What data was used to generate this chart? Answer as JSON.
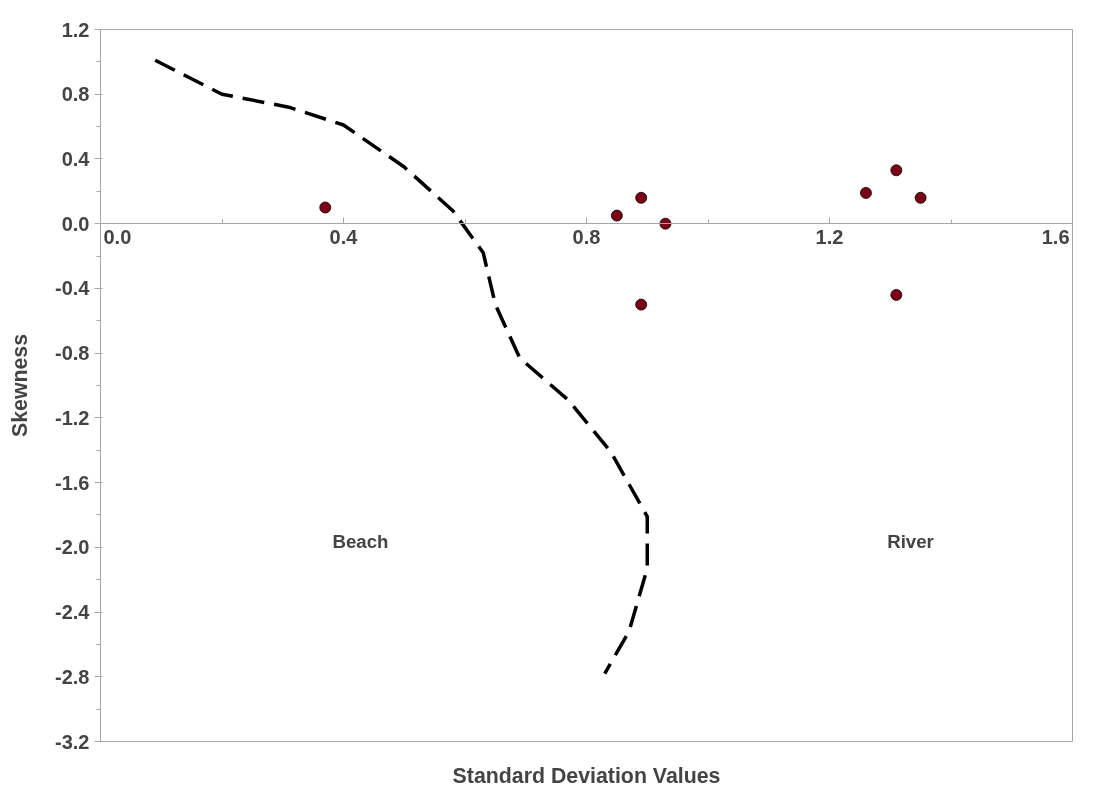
{
  "chart_data": {
    "type": "scatter",
    "xlabel": "Standard Deviation Values",
    "ylabel": "Skewness",
    "xlim": [
      0,
      1.6
    ],
    "ylim": [
      -3.2,
      1.2
    ],
    "xticks": [
      {
        "value": 0,
        "label": "0.0"
      },
      {
        "value": 0.2,
        "label": null
      },
      {
        "value": 0.4,
        "label": "0.4"
      },
      {
        "value": 0.6,
        "label": null
      },
      {
        "value": 0.8,
        "label": "0.8"
      },
      {
        "value": 1.0,
        "label": null
      },
      {
        "value": 1.2,
        "label": "1.2"
      },
      {
        "value": 1.4,
        "label": null
      },
      {
        "value": 1.6,
        "label": "1.6"
      }
    ],
    "yticks": [
      {
        "value": 1.2,
        "label": "1.2"
      },
      {
        "value": 1.0,
        "label": null
      },
      {
        "value": 0.8,
        "label": "0.8"
      },
      {
        "value": 0.6,
        "label": null
      },
      {
        "value": 0.4,
        "label": "0.4"
      },
      {
        "value": 0.2,
        "label": null
      },
      {
        "value": 0,
        "label": "0.0"
      },
      {
        "value": -0.2,
        "label": null
      },
      {
        "value": -0.4,
        "label": "-0.4"
      },
      {
        "value": -0.6,
        "label": null
      },
      {
        "value": -0.8,
        "label": "-0.8"
      },
      {
        "value": -1.0,
        "label": null
      },
      {
        "value": -1.2,
        "label": "-1.2"
      },
      {
        "value": -1.4,
        "label": null
      },
      {
        "value": -1.6,
        "label": "-1.6"
      },
      {
        "value": -1.8,
        "label": null
      },
      {
        "value": -2.0,
        "label": "-2.0"
      },
      {
        "value": -2.2,
        "label": null
      },
      {
        "value": -2.4,
        "label": "-2.4"
      },
      {
        "value": -2.6,
        "label": null
      },
      {
        "value": -2.8,
        "label": "-2.8"
      },
      {
        "value": -3.0,
        "label": null
      },
      {
        "value": -3.2,
        "label": "-3.2"
      }
    ],
    "grid": false,
    "series": [
      {
        "color": "#7b0015",
        "marker": "circle",
        "x": [
          0.37,
          0.85,
          0.89,
          0.93,
          0.89,
          1.26,
          1.31,
          1.35,
          1.31
        ],
        "values": [
          0.1,
          0.05,
          0.16,
          0.0,
          -0.5,
          0.19,
          0.33,
          0.16,
          -0.44
        ]
      },
      {
        "type": "line",
        "color": "#000000",
        "line_style": "dashed",
        "marker": "none",
        "x": [
          0.09,
          0.2,
          0.31,
          0.4,
          0.5,
          0.58,
          0.63,
          0.65,
          0.69,
          0.77,
          0.84,
          0.9,
          0.9,
          0.87,
          0.83
        ],
        "values": [
          1.01,
          0.8,
          0.72,
          0.61,
          0.35,
          0.08,
          -0.18,
          -0.5,
          -0.83,
          -1.09,
          -1.41,
          -1.81,
          -2.13,
          -2.52,
          -2.78
        ]
      }
    ],
    "annotations": [
      "Beach",
      "River"
    ]
  }
}
